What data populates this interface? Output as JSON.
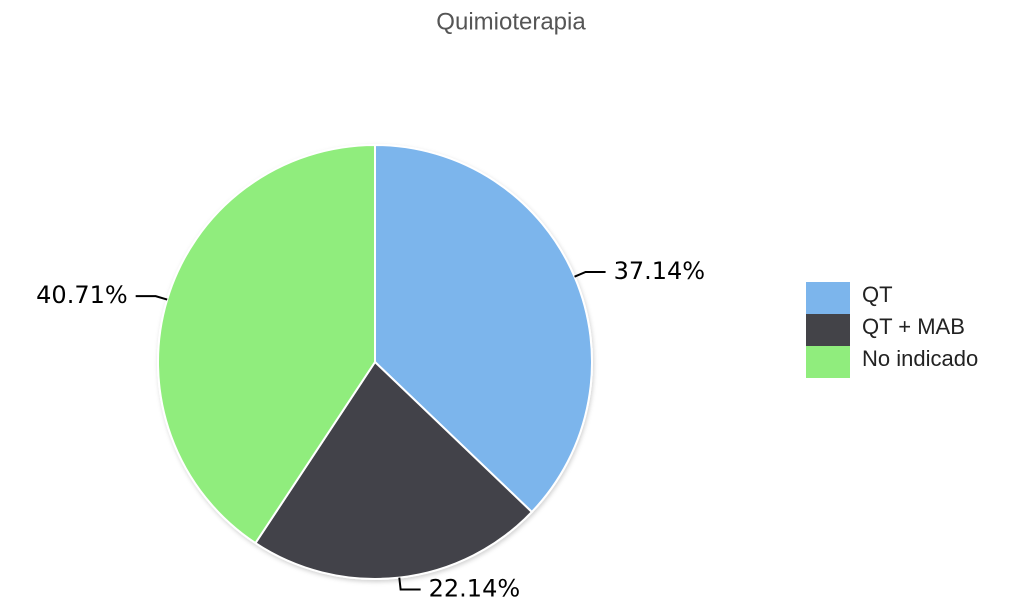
{
  "chart_data": {
    "type": "pie",
    "title": "Quimioterapia",
    "categories": [
      "QT",
      "QT + MAB",
      "No indicado"
    ],
    "values": [
      37.14,
      22.14,
      40.71
    ],
    "value_labels": [
      "37.14%",
      "22.14%",
      "40.71%"
    ],
    "colors": [
      "#7cb5ec",
      "#434348",
      "#90ed7d"
    ],
    "legend": "right"
  }
}
